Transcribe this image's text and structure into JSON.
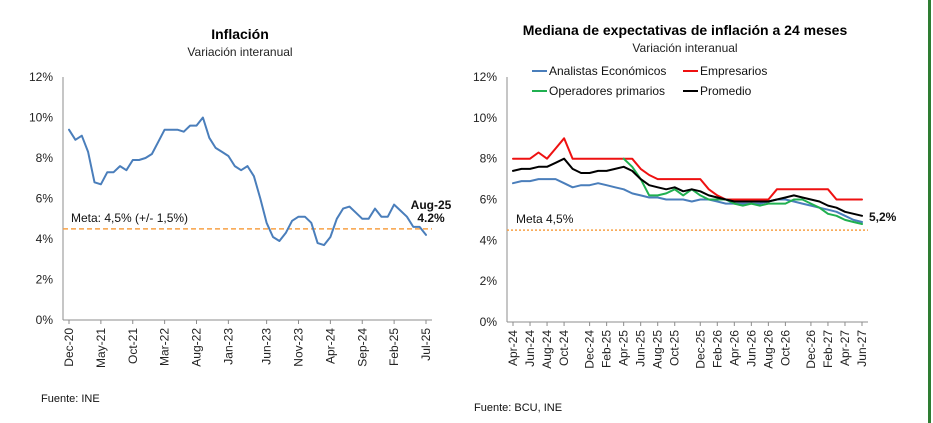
{
  "chart_data": [
    {
      "type": "line",
      "title": "Inflación",
      "subtitle": "Variación interanual",
      "source": "Fuente: INE",
      "ylim": [
        0,
        12
      ],
      "yticks": [
        "0%",
        "2%",
        "4%",
        "6%",
        "8%",
        "10%",
        "12%"
      ],
      "xtick_labels": [
        "Dec-20",
        "May-21",
        "Oct-21",
        "Mar-22",
        "Aug-22",
        "Jan-23",
        "Jun-23",
        "Nov-23",
        "Apr-24",
        "Sep-24",
        "Feb-25",
        "Jul-25"
      ],
      "series": [
        {
          "name": "Inflación",
          "color": "#4a7ebb",
          "values": [
            9.4,
            8.9,
            9.1,
            8.3,
            6.8,
            6.7,
            7.3,
            7.3,
            7.6,
            7.4,
            7.9,
            7.9,
            8.0,
            8.2,
            8.8,
            9.4,
            9.4,
            9.4,
            9.3,
            9.6,
            9.6,
            10.0,
            9.0,
            8.5,
            8.3,
            8.1,
            7.6,
            7.4,
            7.6,
            7.1,
            6.0,
            4.8,
            4.1,
            3.9,
            4.3,
            4.9,
            5.1,
            5.1,
            4.8,
            3.8,
            3.7,
            4.1,
            5.0,
            5.5,
            5.6,
            5.3,
            5.0,
            5.0,
            5.5,
            5.1,
            5.1,
            5.7,
            5.4,
            5.1,
            4.6,
            4.6,
            4.2
          ]
        }
      ],
      "reference": {
        "label": "Meta: 4,5% (+/- 1,5%)",
        "value": 4.5,
        "color": "#f7a045"
      },
      "annotation": {
        "label": "Aug-25",
        "value_label": "4.2%",
        "color": "#4a7ebb"
      }
    },
    {
      "type": "line",
      "title": "Mediana de expectativas de inflación a 24 meses",
      "subtitle": "Variación interanual",
      "source": "Fuente: BCU, INE",
      "ylim": [
        0,
        12
      ],
      "yticks": [
        "0%",
        "2%",
        "4%",
        "6%",
        "8%",
        "10%",
        "12%"
      ],
      "xtick_labels": [
        "Apr-24",
        "Jun-24",
        "Aug-24",
        "Oct-24",
        "Dec-24",
        "Feb-25",
        "Apr-25",
        "Jun-25",
        "Aug-25",
        "Oct-25",
        "Dec-25",
        "Feb-26",
        "Apr-26",
        "Jun-26",
        "Aug-26",
        "Oct-26",
        "Dec-26",
        "Feb-27",
        "Apr-27",
        "Jun-27"
      ],
      "series": [
        {
          "name": "Analistas Económicos",
          "color": "#4a7ebb",
          "values": [
            6.8,
            6.9,
            6.9,
            7.0,
            7.0,
            7.0,
            6.8,
            6.6,
            6.7,
            6.7,
            6.8,
            6.7,
            6.6,
            6.5,
            6.3,
            6.2,
            6.1,
            6.1,
            6.0,
            6.0,
            6.0,
            5.9,
            6.0,
            6.0,
            5.9,
            5.8,
            5.8,
            5.8,
            5.8,
            5.8,
            5.9,
            6.0,
            6.0,
            5.9,
            5.8,
            5.7,
            5.6,
            5.5,
            5.4,
            5.2,
            5.0,
            4.9
          ]
        },
        {
          "name": "Empresarios",
          "color": "#ee1111",
          "values": [
            8.0,
            8.0,
            8.0,
            8.3,
            8.0,
            8.5,
            9.0,
            8.0,
            8.0,
            8.0,
            8.0,
            8.0,
            8.0,
            8.0,
            8.0,
            7.5,
            7.2,
            7.0,
            7.0,
            7.0,
            7.0,
            7.0,
            7.0,
            6.5,
            6.2,
            6.0,
            6.0,
            6.0,
            6.0,
            6.0,
            6.0,
            6.5,
            6.5,
            6.5,
            6.5,
            6.5,
            6.5,
            6.5,
            6.0,
            6.0,
            6.0,
            6.0
          ]
        },
        {
          "name": "Operadores primarios",
          "color": "#20b050",
          "values": [
            null,
            null,
            null,
            null,
            null,
            null,
            null,
            null,
            null,
            null,
            null,
            null,
            null,
            8.0,
            7.6,
            7.0,
            6.2,
            6.2,
            6.3,
            6.5,
            6.2,
            6.5,
            6.2,
            6.0,
            6.0,
            6.0,
            5.8,
            5.7,
            5.8,
            5.7,
            5.8,
            5.8,
            5.8,
            6.0,
            6.0,
            5.8,
            5.6,
            5.3,
            5.2,
            5.0,
            4.9,
            4.8
          ]
        },
        {
          "name": "Promedio",
          "color": "#000000",
          "values": [
            7.4,
            7.5,
            7.5,
            7.6,
            7.6,
            7.8,
            8.0,
            7.5,
            7.3,
            7.3,
            7.4,
            7.4,
            7.5,
            7.6,
            7.4,
            7.0,
            6.7,
            6.6,
            6.5,
            6.6,
            6.4,
            6.5,
            6.4,
            6.2,
            6.1,
            6.0,
            5.9,
            5.9,
            5.9,
            5.9,
            5.9,
            6.0,
            6.1,
            6.2,
            6.1,
            6.0,
            5.9,
            5.7,
            5.6,
            5.4,
            5.3,
            5.2
          ]
        }
      ],
      "legend": [
        "Analistas Económicos",
        "Empresarios",
        "Operadores primarios",
        "Promedio"
      ],
      "reference": {
        "label": "Meta 4,5%",
        "value": 4.5,
        "color": "#f7a045"
      },
      "end_label": "5,2%"
    }
  ]
}
